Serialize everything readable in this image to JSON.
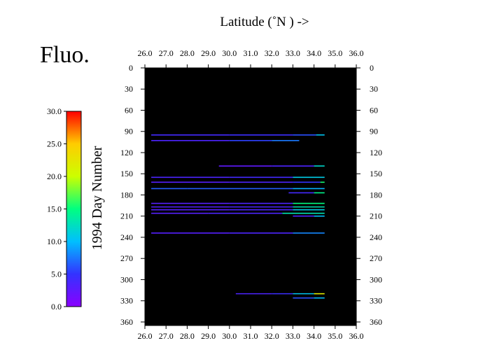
{
  "chart_data": {
    "type": "scatter",
    "title": "Fluo.",
    "x_axis_label": "Latitude (˚N ) ->",
    "xlim": [
      26.0,
      36.0
    ],
    "x_ticks": [
      "26.0",
      "27.0",
      "28.0",
      "29.0",
      "30.0",
      "31.0",
      "32.0",
      "33.0",
      "34.0",
      "35.0",
      "36.0"
    ],
    "y_axis_label": "1994  Day Number",
    "ylim": [
      0,
      365
    ],
    "y_inverted": true,
    "y_ticks": [
      "0",
      "30",
      "60",
      "90",
      "120",
      "150",
      "180",
      "210",
      "240",
      "270",
      "300",
      "330",
      "360"
    ],
    "plot_background": "#000000",
    "colorbar": {
      "min": 0.0,
      "max": 30.0,
      "tick_labels": [
        "30.0",
        "25.0",
        "20.0",
        "15.0",
        "10.0",
        "5.0",
        "0.0"
      ],
      "colors": [
        "#8a00ff",
        "#3333ff",
        "#00bfff",
        "#00ff80",
        "#ccff00",
        "#ffcc00",
        "#ff0000"
      ]
    },
    "tracks": [
      {
        "day": 95,
        "lat_start": 26.3,
        "lat_end": 34.5,
        "values": [
          [
            26.3,
            4
          ],
          [
            30.0,
            4
          ],
          [
            33.0,
            5
          ],
          [
            34.1,
            7
          ],
          [
            34.5,
            14
          ]
        ]
      },
      {
        "day": 103,
        "lat_start": 26.3,
        "lat_end": 33.3,
        "values": [
          [
            26.3,
            3
          ],
          [
            30.0,
            4
          ],
          [
            32.0,
            7
          ],
          [
            33.3,
            8
          ]
        ]
      },
      {
        "day": 139,
        "lat_start": 29.5,
        "lat_end": 34.5,
        "values": [
          [
            29.5,
            2
          ],
          [
            32.0,
            3
          ],
          [
            34.0,
            4
          ],
          [
            34.5,
            20
          ]
        ]
      },
      {
        "day": 155,
        "lat_start": 26.3,
        "lat_end": 34.5,
        "values": [
          [
            26.3,
            3
          ],
          [
            30.0,
            4
          ],
          [
            33.0,
            4
          ],
          [
            34.5,
            18
          ]
        ]
      },
      {
        "day": 162,
        "lat_start": 26.3,
        "lat_end": 34.5,
        "values": [
          [
            26.3,
            3
          ],
          [
            30.0,
            3
          ],
          [
            33.0,
            4
          ],
          [
            34.3,
            6
          ],
          [
            34.5,
            25
          ]
        ]
      },
      {
        "day": 171,
        "lat_start": 26.3,
        "lat_end": 34.5,
        "values": [
          [
            26.3,
            6
          ],
          [
            28.0,
            7
          ],
          [
            31.0,
            6
          ],
          [
            33.0,
            7
          ],
          [
            34.5,
            12
          ]
        ]
      },
      {
        "day": 177,
        "lat_start": 32.8,
        "lat_end": 34.5,
        "values": [
          [
            32.8,
            3
          ],
          [
            34.0,
            5
          ],
          [
            34.5,
            24
          ]
        ]
      },
      {
        "day": 192,
        "lat_start": 26.3,
        "lat_end": 34.5,
        "values": [
          [
            26.3,
            3
          ],
          [
            30.0,
            3
          ],
          [
            33.0,
            4
          ],
          [
            34.5,
            26
          ]
        ]
      },
      {
        "day": 197,
        "lat_start": 26.3,
        "lat_end": 34.5,
        "values": [
          [
            26.3,
            3
          ],
          [
            30.0,
            3
          ],
          [
            33.0,
            4
          ],
          [
            34.5,
            22
          ]
        ]
      },
      {
        "day": 201,
        "lat_start": 26.3,
        "lat_end": 34.5,
        "values": [
          [
            26.3,
            3
          ],
          [
            30.0,
            3
          ],
          [
            33.0,
            4
          ],
          [
            34.5,
            18
          ]
        ]
      },
      {
        "day": 206,
        "lat_start": 26.3,
        "lat_end": 34.5,
        "values": [
          [
            26.3,
            3
          ],
          [
            29.0,
            3
          ],
          [
            32.5,
            4
          ],
          [
            34.5,
            22
          ]
        ]
      },
      {
        "day": 210,
        "lat_start": 33.0,
        "lat_end": 34.5,
        "values": [
          [
            33.0,
            3
          ],
          [
            34.0,
            4
          ],
          [
            34.5,
            16
          ]
        ]
      },
      {
        "day": 234,
        "lat_start": 26.3,
        "lat_end": 34.5,
        "values": [
          [
            26.3,
            3
          ],
          [
            30.0,
            3
          ],
          [
            33.0,
            4
          ],
          [
            34.5,
            12
          ]
        ]
      },
      {
        "day": 320,
        "lat_start": 30.3,
        "lat_end": 34.5,
        "values": [
          [
            30.3,
            3
          ],
          [
            32.0,
            4
          ],
          [
            33.0,
            5
          ],
          [
            34.0,
            16
          ],
          [
            34.5,
            28
          ]
        ]
      },
      {
        "day": 326,
        "lat_start": 33.0,
        "lat_end": 34.5,
        "values": [
          [
            33.0,
            3
          ],
          [
            34.0,
            9
          ],
          [
            34.5,
            11
          ]
        ]
      }
    ]
  }
}
